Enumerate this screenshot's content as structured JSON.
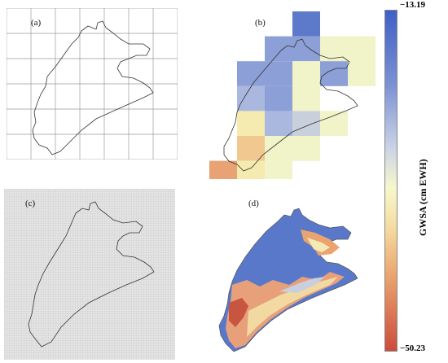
{
  "panels": {
    "a": {
      "label": "(a)"
    },
    "b": {
      "label": "(b)"
    },
    "c": {
      "label": "(c)"
    },
    "d": {
      "label": "(d)"
    }
  },
  "colorbar": {
    "max_label": "−13.19",
    "min_label": "−50.23",
    "title": "GWSA (cm EWH)",
    "colors": [
      "#3e5fc6",
      "#7c92d3",
      "#c9d2e6",
      "#f6f8cc",
      "#f5dba0",
      "#eaa46f",
      "#cc4b3c"
    ]
  },
  "grid_b_colors": {
    "blue_dark": "#5d79c9",
    "blue": "#8c9fd6",
    "blue_light": "#aab8e0",
    "gray": "#c8d0dc",
    "cream": "#f1f3c8",
    "yellow": "#f5ebb0",
    "orange_light": "#f1c890",
    "orange": "#e8a274"
  }
}
